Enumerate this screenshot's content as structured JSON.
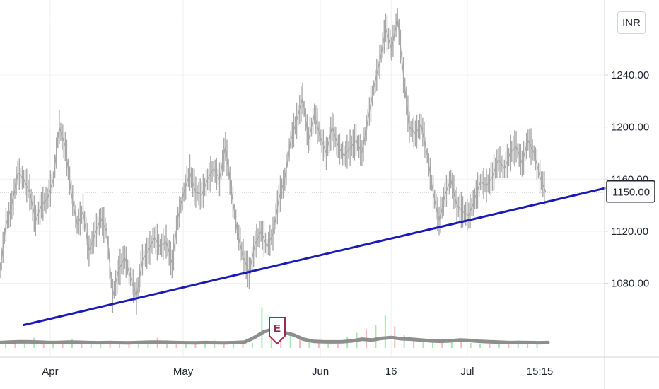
{
  "currency": "INR",
  "last_price_label": "1150.00",
  "earnings_marker": "E",
  "colors": {
    "price": "#a8a8a8",
    "trendline": "#1a1ab4",
    "volume_up": "#8fe39b",
    "volume_down": "#f2a7a7",
    "volume_ma": "#8e8e8e",
    "earnings": "#9c2a4e",
    "label_bg": "#ffffff"
  },
  "chart_data": {
    "type": "line",
    "xlabel": "",
    "ylabel": "",
    "y_ticks": [
      "1080.00",
      "1120.00",
      "1160.00",
      "1200.00",
      "1240.00"
    ],
    "ylim": [
      1045,
      1290
    ],
    "x_labels": [
      "Apr",
      "May",
      "Jun",
      "16",
      "Jul",
      "15:15"
    ],
    "grid": true,
    "series": [
      {
        "values": [
          1090,
          1125,
          1140,
          1165,
          1160,
          1150,
          1128,
          1140,
          1145,
          1160,
          1200,
          1185,
          1150,
          1125,
          1135,
          1105,
          1118,
          1130,
          1120,
          1070,
          1090,
          1100,
          1085,
          1070,
          1098,
          1105,
          1115,
          1108,
          1112,
          1095,
          1130,
          1150,
          1165,
          1150,
          1148,
          1160,
          1168,
          1160,
          1185,
          1150,
          1120,
          1100,
          1088,
          1110,
          1120,
          1108,
          1118,
          1145,
          1160,
          1190,
          1205,
          1222,
          1190,
          1210,
          1192,
          1180,
          1200,
          1185,
          1178,
          1184,
          1190,
          1180,
          1206,
          1230,
          1250,
          1276,
          1260,
          1284,
          1240,
          1200,
          1195,
          1202,
          1178,
          1150,
          1128,
          1148,
          1160,
          1140,
          1135,
          1132,
          1145,
          1158,
          1155,
          1162,
          1175,
          1168,
          1180,
          1185,
          1172,
          1190,
          1180,
          1162,
          1150
        ]
      }
    ],
    "trendline": {
      "start": [
        0.03,
        1048
      ],
      "end": [
        1.0,
        1153
      ]
    },
    "current_price": 1150,
    "volume_ma": [
      0.3,
      0.35,
      0.4,
      0.38,
      0.35,
      0.3,
      0.32,
      0.35,
      0.34,
      0.3,
      0.28,
      0.3,
      0.29,
      0.27,
      0.3,
      0.34,
      0.35,
      0.33,
      0.3,
      0.28,
      0.27,
      0.3,
      0.28,
      0.27,
      0.3,
      0.35,
      0.9,
      1.6,
      1.9,
      1.5,
      1.2,
      0.7,
      0.45,
      0.4,
      0.38,
      0.4,
      0.5,
      0.7,
      0.6,
      0.8,
      0.9,
      0.75,
      0.7,
      0.6,
      0.5,
      0.45,
      0.5,
      0.6,
      0.55,
      0.45,
      0.4,
      0.35,
      0.3,
      0.32,
      0.3,
      0.28,
      0.3
    ],
    "volume_bars": [
      0.3,
      0.5,
      0.4,
      0.8,
      0.6,
      0.3,
      0.4,
      0.7,
      0.5,
      0.3,
      0.4,
      0.6,
      0.4,
      0.3,
      0.5,
      0.4,
      0.8,
      0.6,
      0.5,
      0.4,
      0.3,
      0.5,
      0.6,
      0.4,
      0.3,
      0.5,
      0.4,
      3.2,
      2.1,
      1.4,
      1.0,
      0.8,
      0.6,
      0.5,
      0.4,
      0.6,
      0.9,
      1.2,
      1.5,
      1.8,
      2.6,
      1.7,
      1.0,
      0.8,
      0.6,
      0.7,
      0.5,
      0.6,
      0.5,
      0.4,
      0.3,
      0.5,
      0.4,
      0.3,
      0.6,
      0.5,
      0.4
    ],
    "volume_bar_directions": [
      "u",
      "d",
      "u",
      "u",
      "d",
      "u",
      "d",
      "u",
      "d",
      "u",
      "u",
      "d",
      "u",
      "d",
      "u",
      "u",
      "d",
      "u",
      "d",
      "u",
      "d",
      "u",
      "u",
      "d",
      "u",
      "d",
      "u",
      "u",
      "u",
      "d",
      "u",
      "d",
      "u",
      "d",
      "u",
      "d",
      "u",
      "u",
      "d",
      "u",
      "u",
      "d",
      "u",
      "d",
      "u",
      "u",
      "d",
      "u",
      "d",
      "u",
      "u",
      "d",
      "u",
      "d",
      "u",
      "d",
      "u"
    ]
  }
}
